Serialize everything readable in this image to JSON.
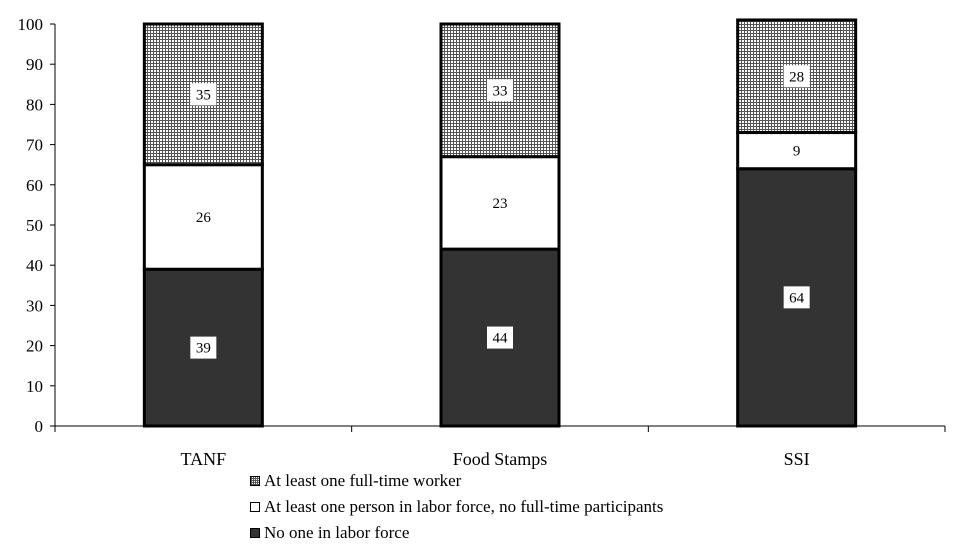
{
  "chart_data": {
    "type": "bar",
    "stacked": true,
    "title": "",
    "xlabel": "",
    "ylabel": "",
    "ylim": [
      0,
      100
    ],
    "yticks": [
      0,
      10,
      20,
      30,
      40,
      50,
      60,
      70,
      80,
      90,
      100
    ],
    "categories": [
      "TANF",
      "Food Stamps",
      "SSI"
    ],
    "series": [
      {
        "name": "No one in labor force",
        "values": [
          39,
          44,
          64
        ],
        "color": "#333333",
        "pattern": "solid-dark"
      },
      {
        "name": "At least one person in labor force, no full-time participants",
        "values": [
          26,
          23,
          9
        ],
        "color": "#ffffff",
        "pattern": "white"
      },
      {
        "name": "At least one full-time worker",
        "values": [
          35,
          33,
          28
        ],
        "color": "#ffffff",
        "pattern": "grid"
      }
    ],
    "data_labels": true,
    "grid": false,
    "legend_position": "bottom"
  },
  "legend": {
    "items": [
      {
        "label": "At least one full-time worker",
        "swatch": "grid"
      },
      {
        "label": "At least one person in labor force, no full-time participants",
        "swatch": "white"
      },
      {
        "label": "No one in labor force",
        "swatch": "dark"
      }
    ]
  }
}
